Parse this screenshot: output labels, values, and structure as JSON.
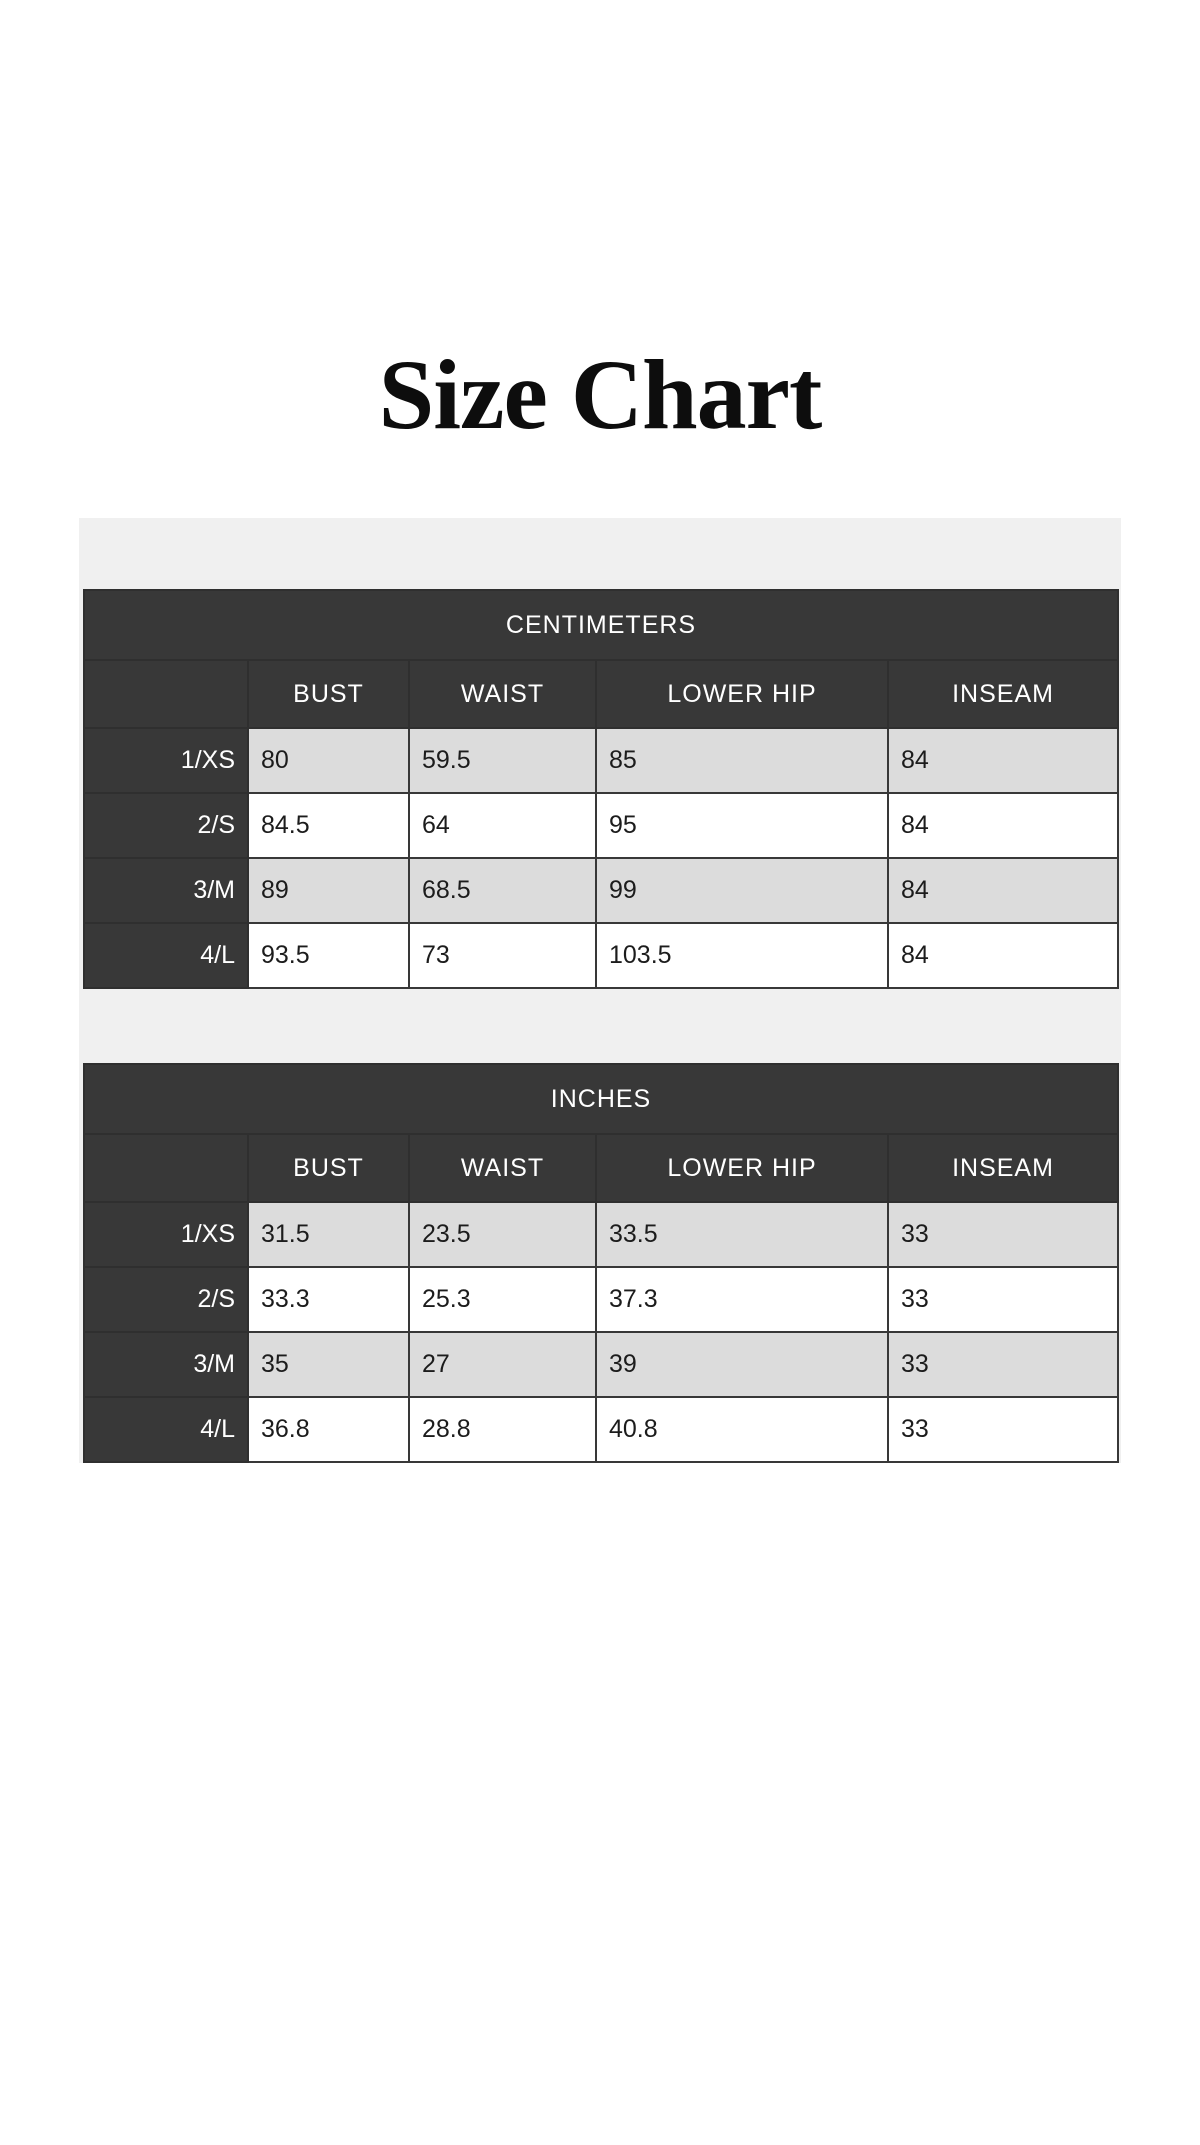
{
  "page": {
    "title": "Size Chart"
  },
  "tables": [
    {
      "unit_label": "CENTIMETERS",
      "columns": [
        "BUST",
        "WAIST",
        "LOWER HIP",
        "INSEAM"
      ],
      "rows": [
        {
          "size": "1/XS",
          "values": [
            "80",
            "59.5",
            "85",
            "84"
          ]
        },
        {
          "size": "2/S",
          "values": [
            "84.5",
            "64",
            "95",
            "84"
          ]
        },
        {
          "size": "3/M",
          "values": [
            "89",
            "68.5",
            "99",
            "84"
          ]
        },
        {
          "size": "4/L",
          "values": [
            "93.5",
            "73",
            "103.5",
            "84"
          ]
        }
      ]
    },
    {
      "unit_label": "INCHES",
      "columns": [
        "BUST",
        "WAIST",
        "LOWER HIP",
        "INSEAM"
      ],
      "rows": [
        {
          "size": "1/XS",
          "values": [
            "31.5",
            "23.5",
            "33.5",
            "33"
          ]
        },
        {
          "size": "2/S",
          "values": [
            "33.3",
            "25.3",
            "37.3",
            "33"
          ]
        },
        {
          "size": "3/M",
          "values": [
            "35",
            "27",
            "39",
            "33"
          ]
        },
        {
          "size": "4/L",
          "values": [
            "36.8",
            "28.8",
            "40.8",
            "33"
          ]
        }
      ]
    }
  ],
  "colors": {
    "header_bg": "#383838",
    "header_text": "#ffffff",
    "row_alt_bg": "#dcdcdc",
    "row_bg": "#ffffff",
    "section_bg": "#f0f0f0",
    "cell_text": "#1c1c1c",
    "title_text": "#0d0d0d"
  }
}
